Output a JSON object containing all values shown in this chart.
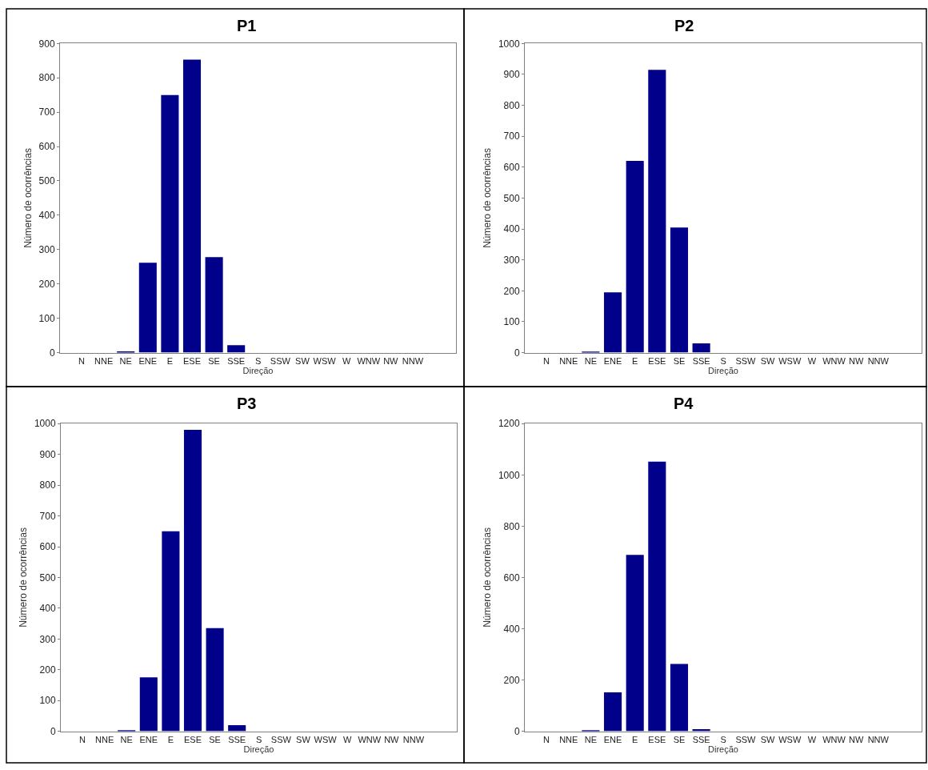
{
  "chart_data": [
    {
      "type": "bar",
      "title": "P1",
      "xlabel": "Direção",
      "ylabel": "Número de ocorrências",
      "categories": [
        "N",
        "NNE",
        "NE",
        "ENE",
        "E",
        "ESE",
        "SE",
        "SSE",
        "S",
        "SSW",
        "SW",
        "WSW",
        "W",
        "WNW",
        "NW",
        "NNW"
      ],
      "values": [
        0,
        0,
        4,
        262,
        750,
        853,
        278,
        22,
        0,
        0,
        0,
        0,
        0,
        0,
        0,
        0
      ],
      "color": "#00008b",
      "ylim": [
        0,
        900
      ],
      "yticks": [
        0,
        100,
        200,
        300,
        400,
        500,
        600,
        700,
        800,
        900
      ]
    },
    {
      "type": "bar",
      "title": "P2",
      "xlabel": "Direção",
      "ylabel": "Número de ocorrências",
      "categories": [
        "N",
        "NNE",
        "NE",
        "ENE",
        "E",
        "ESE",
        "SE",
        "SSE",
        "S",
        "SSW",
        "SW",
        "WSW",
        "W",
        "WNW",
        "NW",
        "NNW"
      ],
      "values": [
        0,
        0,
        2,
        195,
        620,
        915,
        405,
        30,
        0,
        0,
        0,
        0,
        0,
        0,
        0,
        0
      ],
      "color": "#00008b",
      "ylim": [
        0,
        1000
      ],
      "yticks": [
        0,
        100,
        200,
        300,
        400,
        500,
        600,
        700,
        800,
        900,
        1000
      ]
    },
    {
      "type": "bar",
      "title": "P3",
      "xlabel": "Direção",
      "ylabel": "Número de ocorrências",
      "categories": [
        "N",
        "NNE",
        "NE",
        "ENE",
        "E",
        "ESE",
        "SE",
        "SSE",
        "S",
        "SSW",
        "SW",
        "WSW",
        "W",
        "WNW",
        "NW",
        "NNW"
      ],
      "values": [
        0,
        0,
        3,
        175,
        650,
        980,
        335,
        20,
        0,
        0,
        0,
        0,
        0,
        0,
        0,
        0
      ],
      "color": "#00008b",
      "ylim": [
        0,
        1000
      ],
      "yticks": [
        0,
        100,
        200,
        300,
        400,
        500,
        600,
        700,
        800,
        900,
        1000
      ]
    },
    {
      "type": "bar",
      "title": "P4",
      "xlabel": "Direção",
      "ylabel": "Número de ocorrências",
      "categories": [
        "N",
        "NNE",
        "NE",
        "ENE",
        "E",
        "ESE",
        "SE",
        "SSE",
        "S",
        "SSW",
        "SW",
        "WSW",
        "W",
        "WNW",
        "NW",
        "NNW"
      ],
      "values": [
        0,
        0,
        3,
        152,
        688,
        1052,
        263,
        8,
        0,
        0,
        0,
        0,
        0,
        0,
        0,
        0
      ],
      "color": "#00008b",
      "ylim": [
        0,
        1200
      ],
      "yticks": [
        0,
        200,
        400,
        600,
        800,
        1000,
        1200
      ]
    }
  ]
}
